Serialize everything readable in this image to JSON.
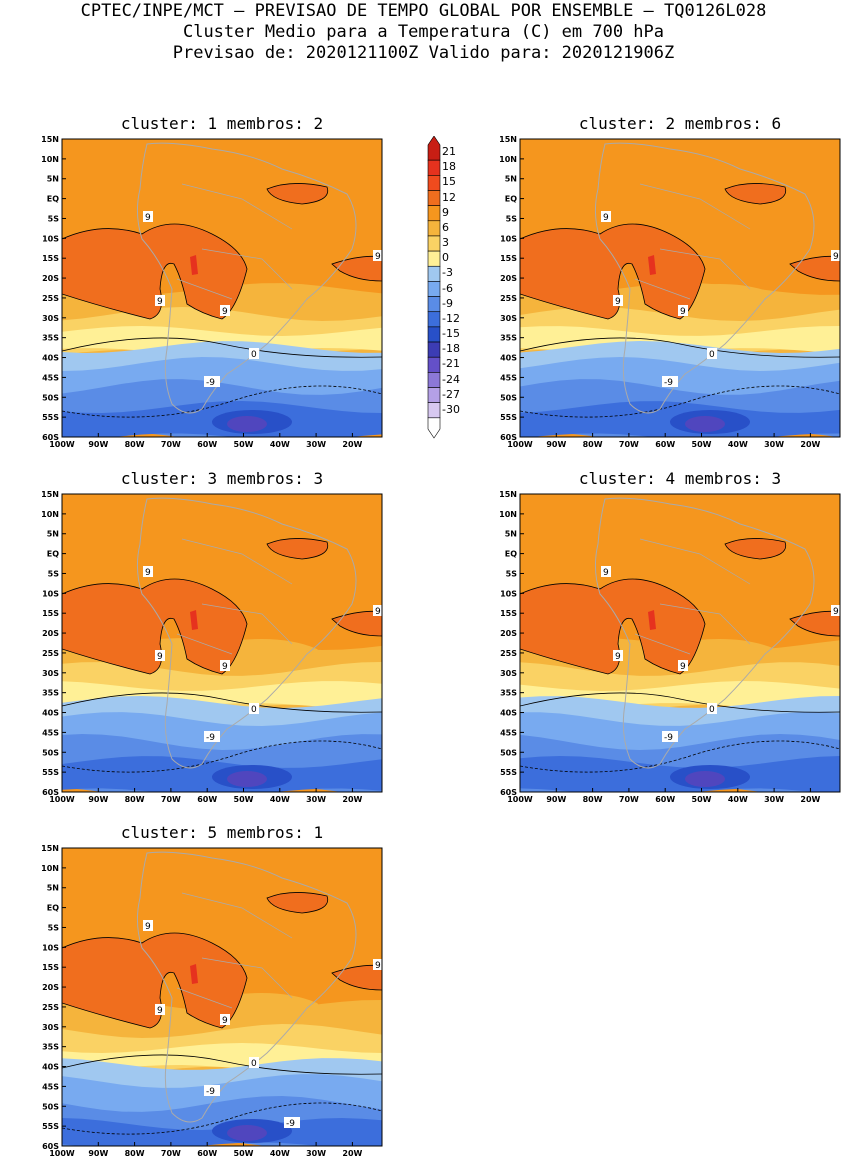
{
  "header": {
    "line1": "CPTEC/INPE/MCT – PREVISAO DE TEMPO GLOBAL POR ENSEMBLE – TQ0126L028",
    "line2": "Cluster Medio para a Temperatura (C) em 700 hPa",
    "line3": "Previsao de: 2020121100Z    Valido para: 2020121906Z"
  },
  "lat_labels": [
    "15N",
    "10N",
    "5N",
    "EQ",
    "5S",
    "10S",
    "15S",
    "20S",
    "25S",
    "30S",
    "35S",
    "40S",
    "45S",
    "50S",
    "55S",
    "60S"
  ],
  "lon_labels": [
    "100W",
    "90W",
    "80W",
    "70W",
    "60W",
    "50W",
    "40W",
    "30W",
    "20W"
  ],
  "panels": [
    {
      "title": "cluster: 1   membros: 2",
      "contour_labels": [
        "9",
        "9",
        "9",
        "9",
        "0",
        "-9"
      ]
    },
    {
      "title": "cluster: 2   membros: 6",
      "contour_labels": [
        "9",
        "9",
        "9",
        "9",
        "0",
        "-9"
      ]
    },
    {
      "title": "cluster: 3   membros: 3",
      "contour_labels": [
        "9",
        "9",
        "9",
        "9",
        "0",
        "-9"
      ]
    },
    {
      "title": "cluster: 4   membros: 3",
      "contour_labels": [
        "9",
        "9",
        "9",
        "9",
        "0",
        "-9"
      ]
    },
    {
      "title": "cluster: 5   membros: 1",
      "contour_labels": [
        "9",
        "9",
        "9",
        "9",
        "0",
        "-9",
        "-9"
      ]
    }
  ],
  "colorbar": {
    "levels": [
      "21",
      "18",
      "15",
      "12",
      "9",
      "6",
      "3",
      "0",
      "-3",
      "-6",
      "-9",
      "-12",
      "-15",
      "-18",
      "-21",
      "-24",
      "-27",
      "-30"
    ],
    "colors": [
      "#c81e14",
      "#e6321e",
      "#f04b1e",
      "#f06e1e",
      "#f5961e",
      "#f5b43c",
      "#fad264",
      "#fff096",
      "#a0c8f0",
      "#78aaf0",
      "#5a8ce6",
      "#3c6edc",
      "#2850c8",
      "#3c3cb4",
      "#6450c8",
      "#8c78d7",
      "#b4a0e6",
      "#d7c8f0",
      "#ffffff"
    ]
  },
  "fill_colors": {
    "c12": "#f06e1e",
    "c9": "#f5961e",
    "c6": "#f5b43c",
    "c3": "#fad264",
    "c0": "#fff096",
    "m3": "#a0c8f0",
    "m6": "#78aaf0",
    "m9": "#5a8ce6",
    "m12": "#3c6edc",
    "m15": "#2850c8",
    "m18": "#5046be",
    "coast": "#aaaaaa"
  }
}
